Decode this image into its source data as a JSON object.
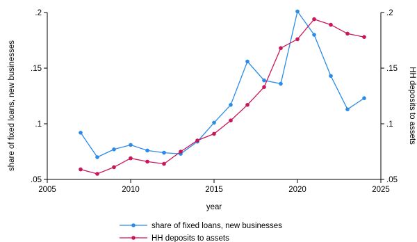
{
  "chart_data": {
    "type": "line",
    "xlabel": "year",
    "ylabel_left": "share of fixed loans, new businesses",
    "ylabel_right": "HH deposits to assets",
    "xlim": [
      2005,
      2025
    ],
    "xticks": [
      2005,
      2010,
      2015,
      2020,
      2025
    ],
    "ylim_left": [
      0.05,
      0.2
    ],
    "ylim_right": [
      0.05,
      0.2
    ],
    "yticks": [
      0.05,
      0.1,
      0.15,
      0.2
    ],
    "ytick_labels": [
      ".05",
      ".1",
      ".15",
      ".2"
    ],
    "grid": false,
    "legend_position": "bottom",
    "x": [
      2007,
      2008,
      2009,
      2010,
      2011,
      2012,
      2013,
      2014,
      2015,
      2016,
      2017,
      2018,
      2019,
      2020,
      2021,
      2022,
      2023,
      2024
    ],
    "series": [
      {
        "name": "share of fixed loans, new businesses",
        "axis": "left",
        "color": "#2a8be8",
        "values": [
          0.092,
          0.07,
          0.077,
          0.081,
          0.076,
          0.074,
          0.073,
          0.084,
          0.101,
          0.117,
          0.156,
          0.139,
          0.136,
          0.201,
          0.18,
          0.143,
          0.113,
          0.123
        ]
      },
      {
        "name": "HH deposits to assets",
        "axis": "right",
        "color": "#c8165a",
        "values": [
          0.059,
          0.055,
          0.061,
          0.069,
          0.066,
          0.064,
          0.075,
          0.085,
          0.091,
          0.103,
          0.117,
          0.133,
          0.168,
          0.176,
          0.194,
          0.189,
          0.181,
          0.178
        ]
      }
    ]
  }
}
